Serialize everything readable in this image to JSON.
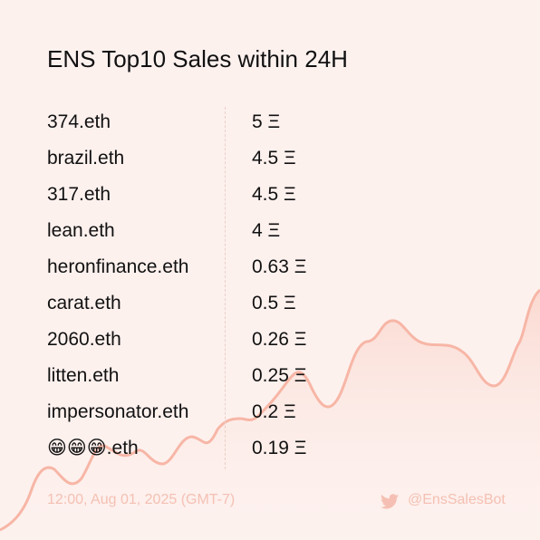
{
  "title": "ENS Top10 Sales within 24H",
  "rows": [
    {
      "name": "374.eth",
      "price": "5 Ξ"
    },
    {
      "name": "brazil.eth",
      "price": "4.5 Ξ"
    },
    {
      "name": "317.eth",
      "price": "4.5 Ξ"
    },
    {
      "name": "lean.eth",
      "price": "4 Ξ"
    },
    {
      "name": "heronfinance.eth",
      "price": "0.63 Ξ"
    },
    {
      "name": "carat.eth",
      "price": "0.5 Ξ"
    },
    {
      "name": "2060.eth",
      "price": "0.26 Ξ"
    },
    {
      "name": "litten.eth",
      "price": "0.25 Ξ"
    },
    {
      "name": "impersonator.eth",
      "price": "0.2 Ξ"
    },
    {
      "name": "😁😁😁.eth",
      "price": "0.19 Ξ"
    }
  ],
  "footer": {
    "timestamp": "12:00, Aug 01, 2025 (GMT-7)",
    "handle": "@EnsSalesBot"
  }
}
